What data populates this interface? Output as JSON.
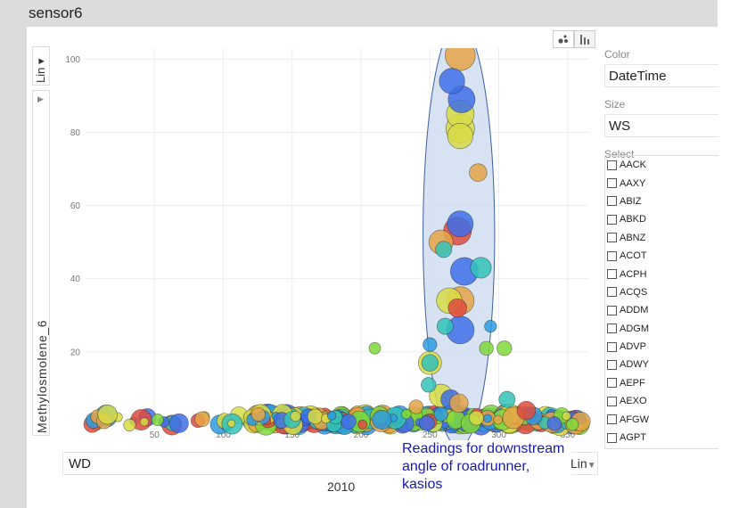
{
  "title": "sensor6",
  "y_axis": {
    "scale": "Lin",
    "label": "Methylosmolene_6"
  },
  "x_axis": {
    "field": "WD",
    "scale": "Lin"
  },
  "year_label": "2010",
  "annotation": "Readings for downstream angle of roadrunner,  kasios",
  "toolbar": {
    "scatter_icon": "scatter-icon",
    "bar_icon": "bar-chart-icon"
  },
  "side_panel": {
    "color_label": "Color",
    "color_value": "DateTime",
    "size_label": "Size",
    "size_value": "WS",
    "select_label": "Select",
    "select_items": [
      "AACK",
      "AAXY",
      "ABIZ",
      "ABKD",
      "ABNZ",
      "ACOT",
      "ACPH",
      "ACQS",
      "ADDM",
      "ADGM",
      "ADVP",
      "ADWY",
      "AEPF",
      "AEXO",
      "AFGW",
      "AGPT"
    ]
  },
  "colors": {
    "blue": "#3f6fe8",
    "lightblue": "#2e9be0",
    "teal": "#33c2b8",
    "green": "#7fd93a",
    "yellow": "#d8dc47",
    "orange": "#e5a546",
    "red": "#df4b3e",
    "ellipse_fill": "#c9d9ef",
    "ellipse_stroke": "#3e5f9c"
  },
  "chart_data": {
    "type": "scatter",
    "xlabel": "WD",
    "ylabel": "Methylosmolene_6",
    "xlim": [
      0,
      365
    ],
    "ylim": [
      0,
      103
    ],
    "x_ticks": [
      50,
      100,
      150,
      200,
      250,
      300,
      350
    ],
    "y_ticks": [
      20,
      40,
      60,
      80,
      100
    ],
    "color_encoding": "DateTime",
    "size_encoding": "WS",
    "highlight_ellipse": {
      "center": [
        271,
        52
      ],
      "rx": 26,
      "ry": 58
    },
    "points": [
      {
        "x": 272,
        "y": 101,
        "size": 6.5,
        "color": "orange"
      },
      {
        "x": 266,
        "y": 94,
        "size": 5.5,
        "color": "blue"
      },
      {
        "x": 273,
        "y": 89,
        "size": 5.8,
        "color": "blue"
      },
      {
        "x": 272,
        "y": 85,
        "size": 6,
        "color": "yellow"
      },
      {
        "x": 272,
        "y": 81,
        "size": 6.2,
        "color": "yellow"
      },
      {
        "x": 272,
        "y": 79,
        "size": 5.5,
        "color": "yellow"
      },
      {
        "x": 285,
        "y": 69,
        "size": 3.8,
        "color": "orange"
      },
      {
        "x": 270,
        "y": 53,
        "size": 6,
        "color": "red"
      },
      {
        "x": 272,
        "y": 55,
        "size": 5.6,
        "color": "blue"
      },
      {
        "x": 258,
        "y": 50,
        "size": 5.2,
        "color": "orange"
      },
      {
        "x": 260,
        "y": 48,
        "size": 3.5,
        "color": "teal"
      },
      {
        "x": 275,
        "y": 42,
        "size": 6,
        "color": "blue"
      },
      {
        "x": 287,
        "y": 43,
        "size": 4.5,
        "color": "teal"
      },
      {
        "x": 264,
        "y": 34,
        "size": 5.5,
        "color": "yellow"
      },
      {
        "x": 272,
        "y": 34,
        "size": 6,
        "color": "orange"
      },
      {
        "x": 270,
        "y": 32,
        "size": 4,
        "color": "red"
      },
      {
        "x": 261,
        "y": 27,
        "size": 3.5,
        "color": "teal"
      },
      {
        "x": 272,
        "y": 26,
        "size": 6,
        "color": "blue"
      },
      {
        "x": 294,
        "y": 27,
        "size": 2.6,
        "color": "lightblue"
      },
      {
        "x": 210,
        "y": 21,
        "size": 2.5,
        "color": "green"
      },
      {
        "x": 250,
        "y": 22,
        "size": 3,
        "color": "lightblue"
      },
      {
        "x": 291,
        "y": 21,
        "size": 3,
        "color": "green"
      },
      {
        "x": 304,
        "y": 21,
        "size": 3.2,
        "color": "green"
      },
      {
        "x": 250,
        "y": 17,
        "size": 5,
        "color": "yellow"
      },
      {
        "x": 250,
        "y": 17,
        "size": 3.6,
        "color": "teal"
      },
      {
        "x": 249,
        "y": 11,
        "size": 3.2,
        "color": "teal"
      },
      {
        "x": 258,
        "y": 8,
        "size": 5,
        "color": "yellow"
      },
      {
        "x": 265,
        "y": 7,
        "size": 4.2,
        "color": "blue"
      },
      {
        "x": 271,
        "y": 6,
        "size": 4,
        "color": "orange"
      },
      {
        "x": 240,
        "y": 5,
        "size": 3,
        "color": "orange"
      },
      {
        "x": 306,
        "y": 7,
        "size": 3.5,
        "color": "teal"
      },
      {
        "x": 258,
        "y": 3,
        "size": 3,
        "color": "lightblue"
      },
      {
        "x": 320,
        "y": 4,
        "size": 4,
        "color": "red"
      }
    ],
    "baseline_band": {
      "y_min": 0,
      "y_max": 3,
      "x_range": [
        3,
        360
      ],
      "dense_x_range": [
        120,
        360
      ],
      "palette": [
        "blue",
        "lightblue",
        "teal",
        "green",
        "yellow",
        "orange",
        "red"
      ]
    }
  }
}
